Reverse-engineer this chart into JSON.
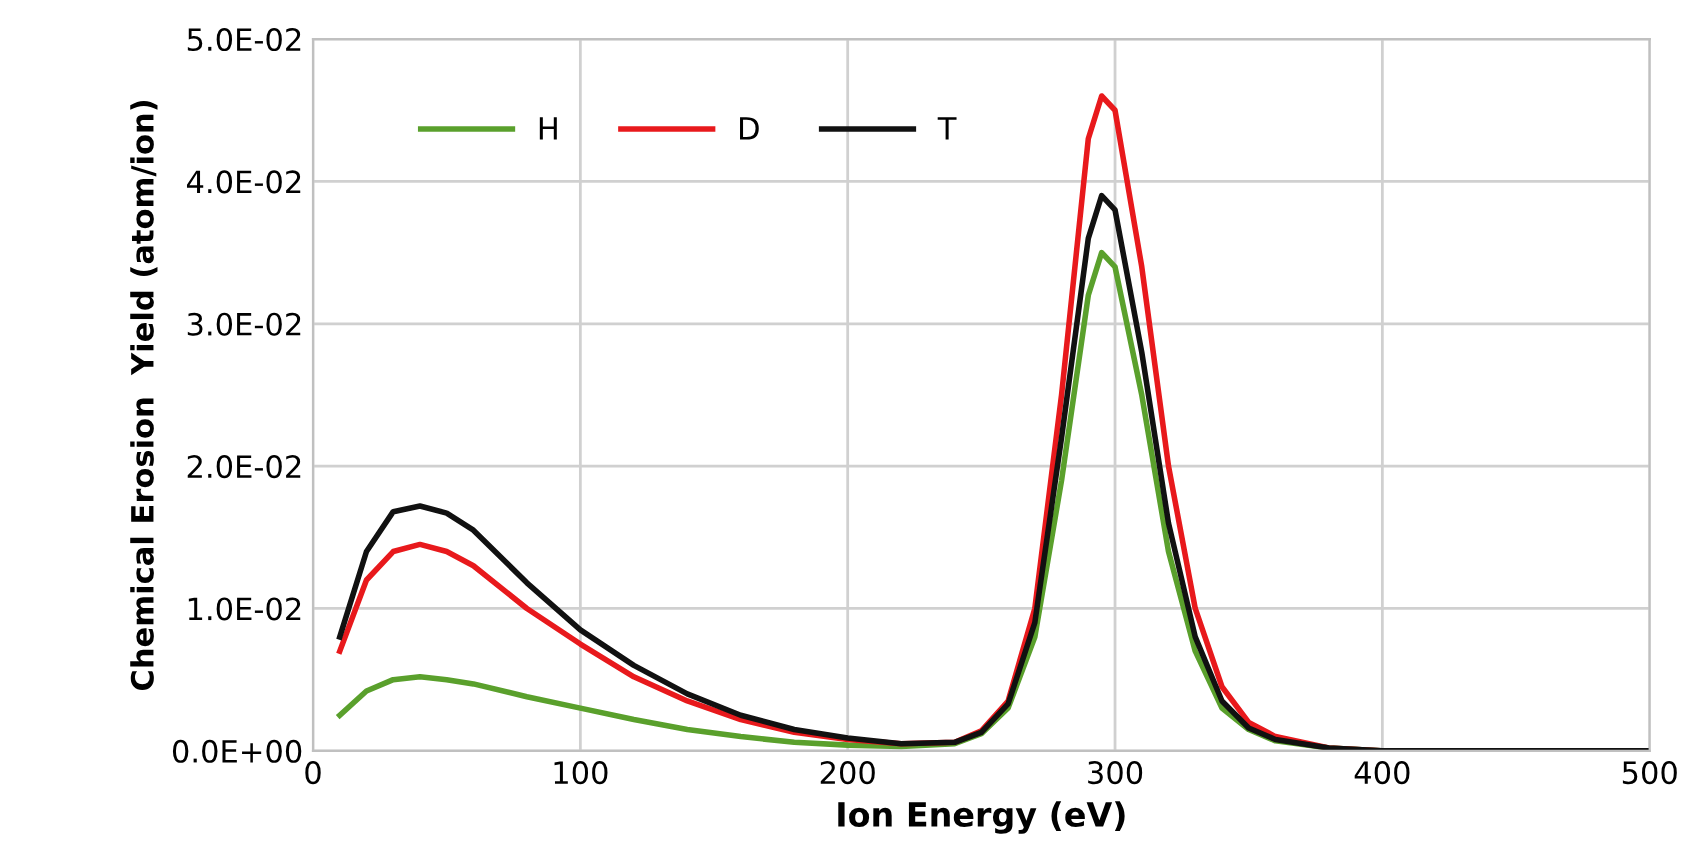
{
  "chart_data": {
    "type": "line",
    "xlabel": "Ion Energy (eV)",
    "ylabel": "Chemical Erosion  Yield (atom/ion)",
    "x": [
      10,
      20,
      30,
      40,
      50,
      60,
      80,
      100,
      120,
      140,
      160,
      180,
      200,
      220,
      240,
      250,
      260,
      270,
      280,
      290,
      295,
      300,
      310,
      320,
      330,
      340,
      350,
      360,
      380,
      400,
      450,
      500
    ],
    "series": [
      {
        "name": "H",
        "color": "#5aa02c",
        "values": [
          0.0025,
          0.0042,
          0.005,
          0.0052,
          0.005,
          0.0047,
          0.0038,
          0.003,
          0.0022,
          0.0015,
          0.001,
          0.0006,
          0.0004,
          0.0003,
          0.0005,
          0.0012,
          0.003,
          0.008,
          0.019,
          0.032,
          0.035,
          0.034,
          0.025,
          0.014,
          0.007,
          0.003,
          0.0015,
          0.0007,
          0.0002,
          0.0,
          null,
          null
        ]
      },
      {
        "name": "D",
        "color": "#e8191c",
        "values": [
          0.007,
          0.012,
          0.014,
          0.0145,
          0.014,
          0.013,
          0.01,
          0.0075,
          0.0052,
          0.0035,
          0.0022,
          0.0013,
          0.0008,
          0.0005,
          0.0006,
          0.0014,
          0.0035,
          0.01,
          0.025,
          0.043,
          0.046,
          0.045,
          0.034,
          0.02,
          0.01,
          0.0045,
          0.002,
          0.001,
          0.0002,
          0.0,
          null,
          null
        ]
      },
      {
        "name": "T",
        "color": "#111111",
        "values": [
          0.008,
          0.014,
          0.0168,
          0.0172,
          0.0167,
          0.0155,
          0.0118,
          0.0085,
          0.006,
          0.004,
          0.0025,
          0.0015,
          0.0009,
          0.0005,
          0.0006,
          0.0013,
          0.0033,
          0.009,
          0.022,
          0.036,
          0.039,
          0.038,
          0.028,
          0.016,
          0.008,
          0.0035,
          0.0016,
          0.0008,
          0.0002,
          0.0,
          0.0,
          0.0
        ]
      }
    ],
    "xlim": [
      0,
      500
    ],
    "xticks": [
      0,
      100,
      200,
      300,
      400,
      500
    ],
    "ylim": [
      0,
      0.05
    ],
    "yticks": [
      {
        "value": 0,
        "label": "0.0E+00"
      },
      {
        "value": 0.01,
        "label": "1.0E-02"
      },
      {
        "value": 0.02,
        "label": "2.0E-02"
      },
      {
        "value": 0.03,
        "label": "3.0E-02"
      },
      {
        "value": 0.04,
        "label": "4.0E-02"
      },
      {
        "value": 0.05,
        "label": "5.0E-02"
      }
    ],
    "grid": true,
    "legend": "top left",
    "line_style": "solid"
  }
}
